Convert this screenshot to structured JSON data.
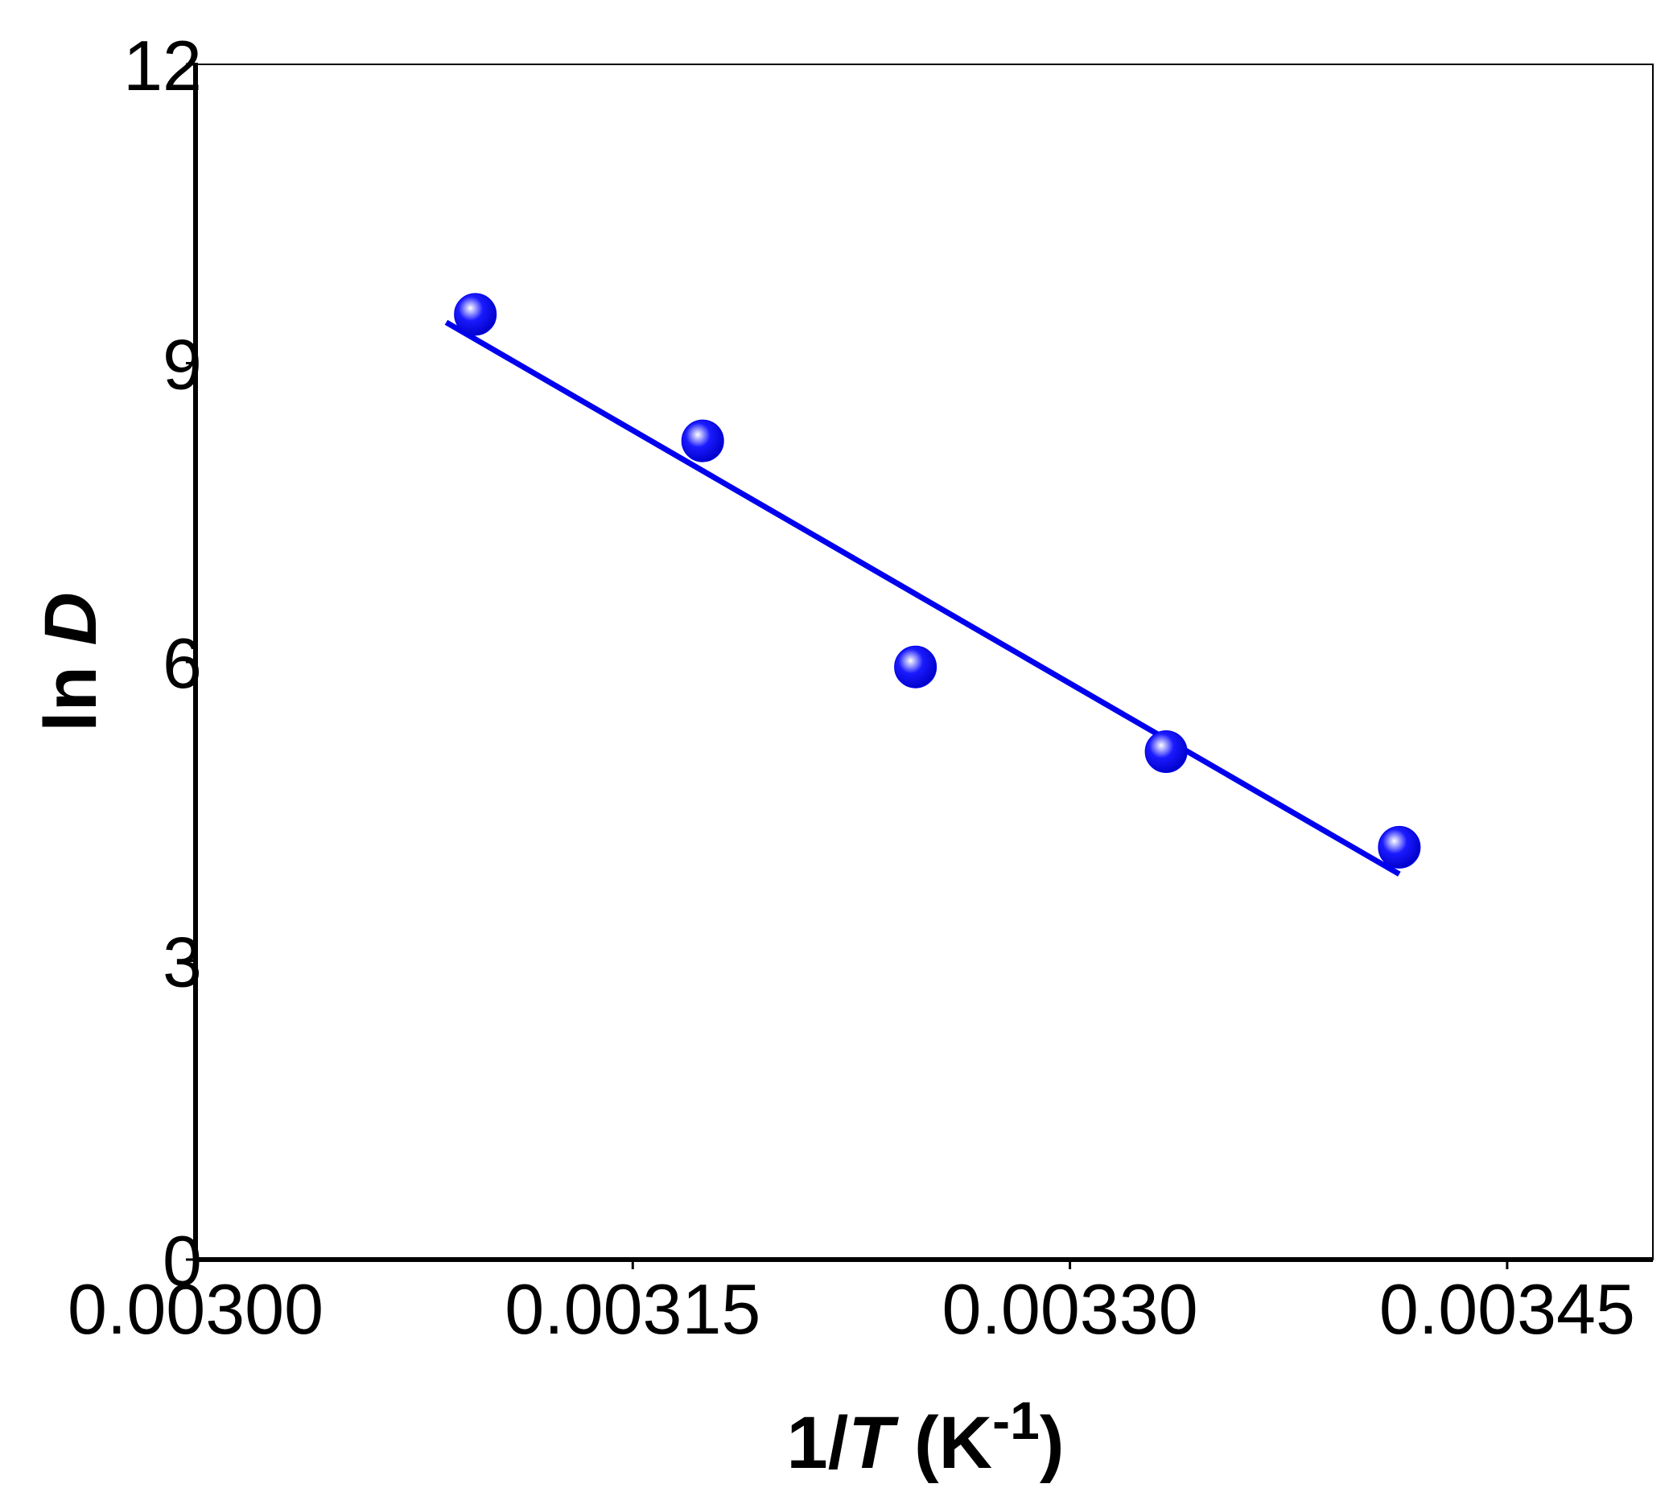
{
  "chart_data": {
    "type": "scatter",
    "xlabel": [
      "1/",
      "T",
      " (K",
      "-1",
      ")"
    ],
    "ylabel": [
      "ln ",
      "D"
    ],
    "x": [
      0.003096,
      0.003174,
      0.003247,
      0.003333,
      0.003413
    ],
    "values": [
      9.49,
      8.22,
      5.95,
      5.1,
      4.14
    ],
    "color": "#0000ee",
    "fit": {
      "x": [
        0.003086,
        0.003413
      ],
      "y": [
        9.41,
        3.87
      ],
      "color": "#0000ee"
    },
    "xlim": [
      0.003,
      0.0035
    ],
    "xticks": [
      {
        "value": 0.003,
        "label": "0.00300"
      },
      {
        "value": 0.00315,
        "label": "0.00315"
      },
      {
        "value": 0.0033,
        "label": "0.00330"
      },
      {
        "value": 0.00345,
        "label": "0.00345"
      }
    ],
    "ylim": [
      0,
      12
    ],
    "yticks": [
      0,
      3,
      6,
      9,
      12
    ],
    "grid": false
  }
}
